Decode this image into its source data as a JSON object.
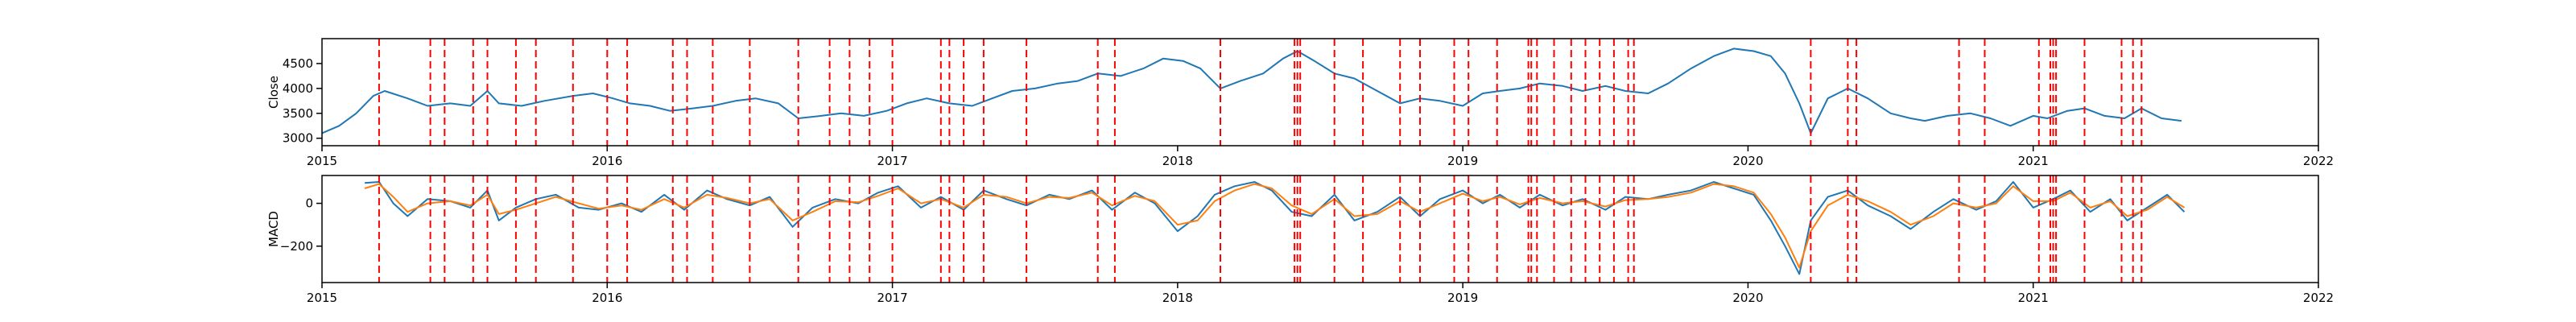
{
  "chart_data": [
    {
      "type": "line",
      "title": "",
      "xlabel": "",
      "ylabel": "Close",
      "xlim": [
        2015.0,
        2022.0
      ],
      "ylim": [
        2850,
        5000
      ],
      "x_ticks": [
        2015,
        2016,
        2017,
        2018,
        2019,
        2020,
        2021,
        2022
      ],
      "y_ticks": [
        3000,
        3500,
        4000,
        4500
      ],
      "grid": false,
      "series": [
        {
          "color": "#1f77b4",
          "x": [
            2015.0,
            2015.06,
            2015.12,
            2015.18,
            2015.22,
            2015.3,
            2015.37,
            2015.45,
            2015.52,
            2015.58,
            2015.62,
            2015.7,
            2015.78,
            2015.88,
            2015.95,
            2016.02,
            2016.08,
            2016.15,
            2016.22,
            2016.3,
            2016.37,
            2016.45,
            2016.52,
            2016.6,
            2016.67,
            2016.75,
            2016.82,
            2016.9,
            2016.98,
            2017.05,
            2017.12,
            2017.2,
            2017.28,
            2017.35,
            2017.42,
            2017.5,
            2017.58,
            2017.65,
            2017.72,
            2017.8,
            2017.88,
            2017.95,
            2018.02,
            2018.08,
            2018.15,
            2018.22,
            2018.3,
            2018.37,
            2018.42,
            2018.48,
            2018.55,
            2018.62,
            2018.7,
            2018.78,
            2018.85,
            2018.92,
            2019.0,
            2019.07,
            2019.13,
            2019.2,
            2019.27,
            2019.35,
            2019.42,
            2019.5,
            2019.57,
            2019.65,
            2019.72,
            2019.8,
            2019.88,
            2019.95,
            2020.02,
            2020.08,
            2020.13,
            2020.18,
            2020.22,
            2020.28,
            2020.35,
            2020.42,
            2020.5,
            2020.57,
            2020.62,
            2020.7,
            2020.78,
            2020.85,
            2020.92,
            2021.0,
            2021.05,
            2021.12,
            2021.18,
            2021.25,
            2021.32,
            2021.38,
            2021.45,
            2021.52
          ],
          "values": [
            3100,
            3250,
            3500,
            3850,
            3950,
            3800,
            3650,
            3700,
            3650,
            3950,
            3700,
            3650,
            3750,
            3850,
            3900,
            3800,
            3700,
            3650,
            3550,
            3600,
            3650,
            3750,
            3800,
            3700,
            3400,
            3450,
            3500,
            3450,
            3550,
            3700,
            3800,
            3700,
            3650,
            3800,
            3950,
            4000,
            4100,
            4150,
            4300,
            4250,
            4400,
            4600,
            4550,
            4400,
            4000,
            4150,
            4300,
            4600,
            4750,
            4550,
            4300,
            4200,
            3950,
            3700,
            3800,
            3750,
            3650,
            3900,
            3950,
            4000,
            4100,
            4050,
            3950,
            4050,
            3950,
            3900,
            4100,
            4400,
            4650,
            4800,
            4750,
            4650,
            4300,
            3700,
            3100,
            3800,
            4000,
            3800,
            3500,
            3400,
            3350,
            3450,
            3500,
            3400,
            3250,
            3450,
            3400,
            3550,
            3600,
            3450,
            3400,
            3600,
            3400,
            3350
          ]
        }
      ]
    },
    {
      "type": "line",
      "title": "",
      "xlabel": "",
      "ylabel": "MACD",
      "xlim": [
        2015.0,
        2022.0
      ],
      "ylim": [
        -370,
        130
      ],
      "x_ticks": [
        2015,
        2016,
        2017,
        2018,
        2019,
        2020,
        2021,
        2022
      ],
      "y_ticks": [
        -200,
        0
      ],
      "grid": false,
      "series": [
        {
          "color": "#1f77b4",
          "x": [
            2015.15,
            2015.2,
            2015.25,
            2015.3,
            2015.37,
            2015.45,
            2015.52,
            2015.58,
            2015.62,
            2015.68,
            2015.75,
            2015.82,
            2015.9,
            2015.97,
            2016.05,
            2016.12,
            2016.2,
            2016.27,
            2016.35,
            2016.42,
            2016.5,
            2016.57,
            2016.65,
            2016.72,
            2016.8,
            2016.88,
            2016.95,
            2017.02,
            2017.1,
            2017.17,
            2017.25,
            2017.32,
            2017.4,
            2017.47,
            2017.55,
            2017.62,
            2017.7,
            2017.77,
            2017.85,
            2017.92,
            2018.0,
            2018.07,
            2018.13,
            2018.2,
            2018.27,
            2018.33,
            2018.4,
            2018.47,
            2018.55,
            2018.62,
            2018.7,
            2018.78,
            2018.85,
            2018.92,
            2019.0,
            2019.07,
            2019.13,
            2019.2,
            2019.27,
            2019.35,
            2019.42,
            2019.5,
            2019.57,
            2019.65,
            2019.72,
            2019.8,
            2019.88,
            2019.95,
            2020.02,
            2020.08,
            2020.13,
            2020.18,
            2020.22,
            2020.28,
            2020.35,
            2020.42,
            2020.5,
            2020.57,
            2020.65,
            2020.72,
            2020.8,
            2020.87,
            2020.93,
            2021.0,
            2021.07,
            2021.13,
            2021.2,
            2021.27,
            2021.33,
            2021.4,
            2021.47,
            2021.53
          ],
          "values": [
            95,
            100,
            0,
            -60,
            20,
            10,
            -20,
            60,
            -80,
            -20,
            20,
            40,
            -20,
            -30,
            0,
            -40,
            40,
            -30,
            60,
            20,
            -10,
            30,
            -110,
            -20,
            20,
            0,
            50,
            80,
            -20,
            30,
            -30,
            60,
            20,
            -10,
            40,
            20,
            60,
            -30,
            50,
            0,
            -130,
            -60,
            40,
            80,
            100,
            60,
            -40,
            -60,
            40,
            -80,
            -40,
            30,
            -60,
            20,
            60,
            0,
            40,
            -20,
            40,
            -10,
            20,
            -30,
            30,
            20,
            40,
            60,
            100,
            70,
            40,
            -80,
            -200,
            -330,
            -80,
            30,
            60,
            -10,
            -60,
            -120,
            -40,
            20,
            -30,
            10,
            100,
            -20,
            20,
            60,
            -40,
            20,
            -80,
            -20,
            40,
            -40
          ]
        },
        {
          "color": "#ff7f0e",
          "x": [
            2015.15,
            2015.2,
            2015.25,
            2015.3,
            2015.37,
            2015.45,
            2015.52,
            2015.58,
            2015.62,
            2015.68,
            2015.75,
            2015.82,
            2015.9,
            2015.97,
            2016.05,
            2016.12,
            2016.2,
            2016.27,
            2016.35,
            2016.42,
            2016.5,
            2016.57,
            2016.65,
            2016.72,
            2016.8,
            2016.88,
            2016.95,
            2017.02,
            2017.1,
            2017.17,
            2017.25,
            2017.32,
            2017.4,
            2017.47,
            2017.55,
            2017.62,
            2017.7,
            2017.77,
            2017.85,
            2017.92,
            2018.0,
            2018.07,
            2018.13,
            2018.2,
            2018.27,
            2018.33,
            2018.4,
            2018.47,
            2018.55,
            2018.62,
            2018.7,
            2018.78,
            2018.85,
            2018.92,
            2019.0,
            2019.07,
            2019.13,
            2019.2,
            2019.27,
            2019.35,
            2019.42,
            2019.5,
            2019.57,
            2019.65,
            2019.72,
            2019.8,
            2019.88,
            2019.95,
            2020.02,
            2020.08,
            2020.13,
            2020.18,
            2020.22,
            2020.28,
            2020.35,
            2020.42,
            2020.5,
            2020.57,
            2020.65,
            2020.72,
            2020.8,
            2020.87,
            2020.93,
            2021.0,
            2021.07,
            2021.13,
            2021.2,
            2021.27,
            2021.33,
            2021.4,
            2021.47,
            2021.53
          ],
          "values": [
            70,
            90,
            30,
            -40,
            0,
            10,
            -10,
            40,
            -50,
            -30,
            0,
            30,
            0,
            -25,
            -10,
            -30,
            20,
            -20,
            40,
            25,
            0,
            20,
            -80,
            -40,
            10,
            5,
            35,
            70,
            0,
            20,
            -20,
            40,
            30,
            0,
            30,
            25,
            50,
            -10,
            35,
            10,
            -100,
            -80,
            10,
            60,
            90,
            70,
            -10,
            -50,
            20,
            -60,
            -50,
            10,
            -40,
            0,
            45,
            10,
            30,
            -5,
            25,
            0,
            10,
            -15,
            15,
            20,
            30,
            50,
            90,
            80,
            50,
            -50,
            -160,
            -300,
            -130,
            -10,
            40,
            10,
            -40,
            -100,
            -60,
            0,
            -20,
            0,
            80,
            10,
            10,
            50,
            -20,
            10,
            -60,
            -30,
            30,
            -20
          ]
        }
      ]
    }
  ],
  "event_markers": {
    "color": "#ff0000",
    "dates": [
      2015.2,
      2015.38,
      2015.43,
      2015.53,
      2015.58,
      2015.68,
      2015.75,
      2015.88,
      2016.0,
      2016.07,
      2016.23,
      2016.28,
      2016.37,
      2016.5,
      2016.67,
      2016.78,
      2016.85,
      2016.92,
      2017.0,
      2017.17,
      2017.2,
      2017.25,
      2017.32,
      2017.47,
      2017.72,
      2017.78,
      2018.15,
      2018.41,
      2018.42,
      2018.43,
      2018.55,
      2018.65,
      2018.78,
      2018.85,
      2018.97,
      2019.02,
      2019.12,
      2019.23,
      2019.24,
      2019.26,
      2019.32,
      2019.38,
      2019.43,
      2019.48,
      2019.53,
      2019.58,
      2019.6,
      2020.22,
      2020.35,
      2020.38,
      2020.74,
      2020.83,
      2021.02,
      2021.06,
      2021.07,
      2021.08,
      2021.18,
      2021.31,
      2021.35,
      2021.38
    ]
  }
}
